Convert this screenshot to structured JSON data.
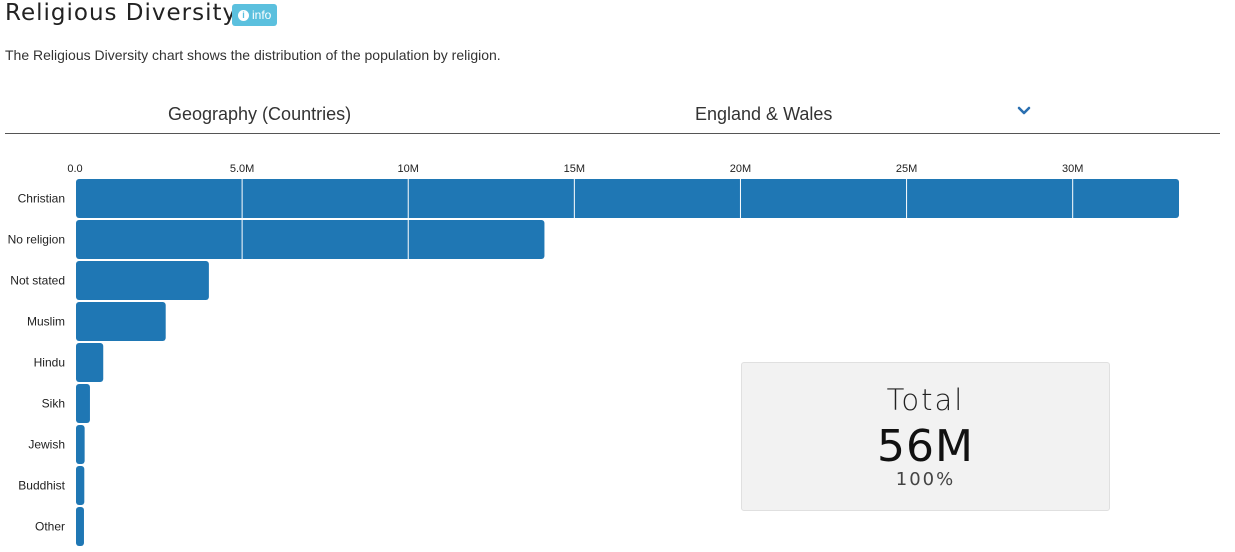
{
  "header": {
    "title": "Religious Diversity",
    "info_label": "info",
    "description": "The Religious Diversity chart shows the distribution of the population by religion."
  },
  "selector": {
    "geography_label": "Geography (Countries)",
    "selected_value": "England & Wales"
  },
  "total": {
    "label": "Total",
    "value": "56M",
    "percent": "100%"
  },
  "colors": {
    "bar": "#1f77b4",
    "badge": "#5bc0de",
    "chevron": "#2a6fb0"
  },
  "chart_data": {
    "type": "bar",
    "orientation": "horizontal",
    "categories": [
      "Christian",
      "No religion",
      "Not stated",
      "Muslim",
      "Hindu",
      "Sikh",
      "Jewish",
      "Buddhist",
      "Other"
    ],
    "values": [
      33200000,
      14100000,
      4000000,
      2700000,
      820000,
      420000,
      260000,
      250000,
      240000
    ],
    "x_ticks": [
      0,
      5000000,
      10000000,
      15000000,
      20000000,
      25000000,
      30000000
    ],
    "x_tick_labels": [
      "0.0",
      "5.0M",
      "10M",
      "15M",
      "20M",
      "25M",
      "30M"
    ],
    "xlim": [
      0,
      33200000
    ],
    "grid": true,
    "title": "",
    "xlabel": "",
    "ylabel": ""
  }
}
